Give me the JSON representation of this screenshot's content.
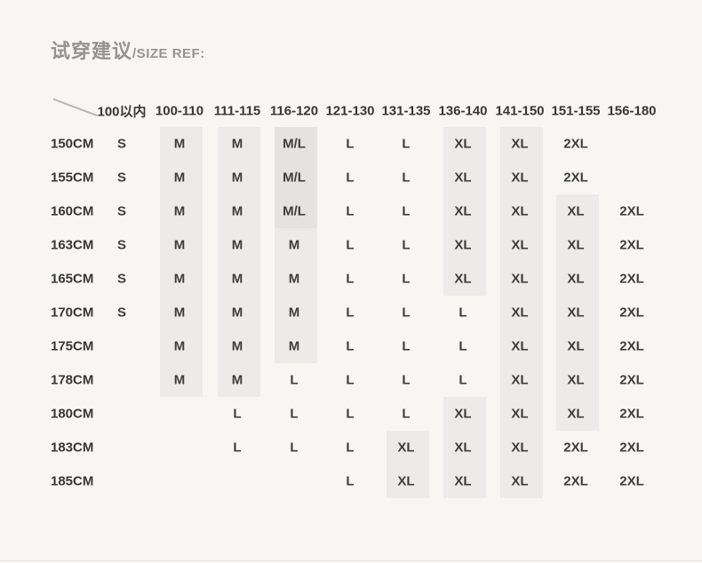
{
  "page": {
    "colors": {
      "background": "#f7f6f3",
      "title": "#96948e",
      "header_text": "#383734",
      "cell_text": "#3e3d3a",
      "highlight_light": "#ecebe9",
      "highlight_dark": "#e4e3e0",
      "diagonal_line": "#b5b4b1"
    }
  },
  "header": {
    "title_cn": "试穿建议",
    "title_en": "/SIZE REF:"
  },
  "chart_data": {
    "type": "table",
    "title": "试穿建议/SIZE REF:",
    "columns": [
      "100以内",
      "100-110",
      "111-115",
      "116-120",
      "121-130",
      "131-135",
      "136-140",
      "141-150",
      "151-155",
      "156-180"
    ],
    "rows": [
      {
        "height": "150CM",
        "sizes": [
          "S",
          "M",
          "M",
          "M/L",
          "L",
          "L",
          "XL",
          "XL",
          "2XL",
          ""
        ]
      },
      {
        "height": "155CM",
        "sizes": [
          "S",
          "M",
          "M",
          "M/L",
          "L",
          "L",
          "XL",
          "XL",
          "2XL",
          ""
        ]
      },
      {
        "height": "160CM",
        "sizes": [
          "S",
          "M",
          "M",
          "M/L",
          "L",
          "L",
          "XL",
          "XL",
          "XL",
          "2XL"
        ]
      },
      {
        "height": "163CM",
        "sizes": [
          "S",
          "M",
          "M",
          "M",
          "L",
          "L",
          "XL",
          "XL",
          "XL",
          "2XL"
        ]
      },
      {
        "height": "165CM",
        "sizes": [
          "S",
          "M",
          "M",
          "M",
          "L",
          "L",
          "XL",
          "XL",
          "XL",
          "2XL"
        ]
      },
      {
        "height": "170CM",
        "sizes": [
          "S",
          "M",
          "M",
          "M",
          "L",
          "L",
          "L",
          "XL",
          "XL",
          "2XL"
        ]
      },
      {
        "height": "175CM",
        "sizes": [
          "",
          "M",
          "M",
          "M",
          "L",
          "L",
          "L",
          "XL",
          "XL",
          "2XL"
        ]
      },
      {
        "height": "178CM",
        "sizes": [
          "",
          "M",
          "M",
          "L",
          "L",
          "L",
          "L",
          "XL",
          "XL",
          "2XL"
        ]
      },
      {
        "height": "180CM",
        "sizes": [
          "",
          "",
          "L",
          "L",
          "L",
          "L",
          "XL",
          "XL",
          "XL",
          "2XL"
        ]
      },
      {
        "height": "183CM",
        "sizes": [
          "",
          "",
          "L",
          "L",
          "L",
          "XL",
          "XL",
          "XL",
          "2XL",
          "2XL"
        ]
      },
      {
        "height": "185CM",
        "sizes": [
          "",
          "",
          "",
          "",
          "L",
          "XL",
          "XL",
          "XL",
          "2XL",
          "2XL"
        ]
      }
    ],
    "highlighted_bands": [
      {
        "column": "100-110",
        "from": "150CM",
        "to": "178CM",
        "shade": "light"
      },
      {
        "column": "111-115",
        "from": "150CM",
        "to": "178CM",
        "shade": "light"
      },
      {
        "column": "116-120",
        "from": "150CM",
        "to": "160CM",
        "shade": "dark"
      },
      {
        "column": "116-120",
        "from": "163CM",
        "to": "175CM",
        "shade": "light"
      },
      {
        "column": "131-135",
        "from": "183CM",
        "to": "185CM",
        "shade": "light"
      },
      {
        "column": "136-140",
        "from": "150CM",
        "to": "165CM",
        "shade": "light"
      },
      {
        "column": "136-140",
        "from": "180CM",
        "to": "185CM",
        "shade": "light"
      },
      {
        "column": "141-150",
        "from": "150CM",
        "to": "185CM",
        "shade": "light"
      },
      {
        "column": "151-155",
        "from": "160CM",
        "to": "180CM",
        "shade": "light"
      }
    ],
    "layout_hints": {
      "grid": false,
      "corner": "diagonal-line",
      "legend": "none"
    }
  }
}
